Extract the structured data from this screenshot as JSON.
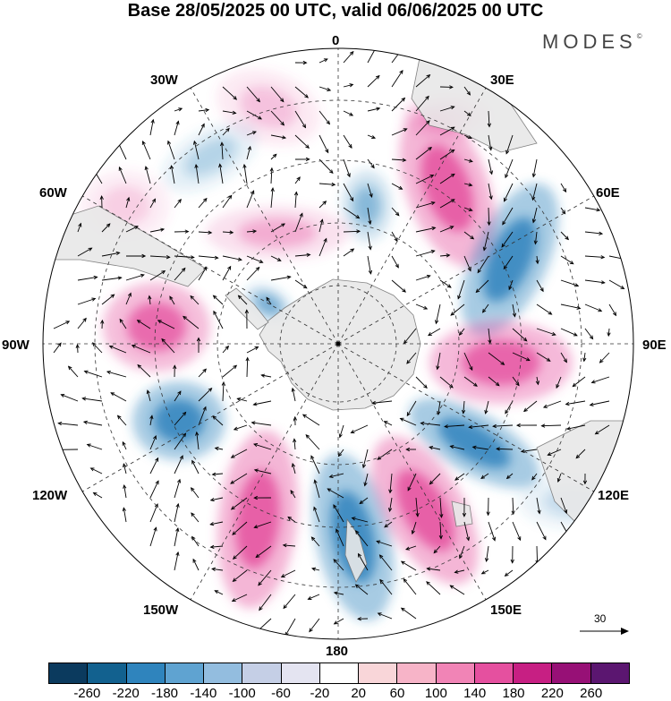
{
  "title": "Base 28/05/2025 00 UTC, valid 06/06/2025 00 UTC",
  "brand": "MODES",
  "brand_mark": "©",
  "longitude_labels": {
    "top": "0",
    "e30": "30E",
    "e60": "60E",
    "e90": "90E",
    "e120": "120E",
    "e150": "150E",
    "bottom": "180",
    "w150": "150W",
    "w120": "120W",
    "w90": "90W",
    "w60": "60W",
    "w30": "30W"
  },
  "reference_vector": {
    "label": "30"
  },
  "colorbar": {
    "colors": [
      "#0b3a5e",
      "#12618f",
      "#2f84bd",
      "#5fa3d1",
      "#93bddf",
      "#c5cfe6",
      "#e4e4f1",
      "#ffffff",
      "#f9d6d9",
      "#f7b4c8",
      "#f184b6",
      "#e5509f",
      "#c71f83",
      "#971076",
      "#5b1670"
    ],
    "tick_labels": [
      "-260",
      "-220",
      "-180",
      "-140",
      "-100",
      "-60",
      "-20",
      "20",
      "60",
      "100",
      "140",
      "180",
      "220",
      "260"
    ]
  },
  "map": {
    "projection": "south polar stereographic",
    "field": "anomaly",
    "pattern": "alternating positive/negative centers encircling Antarctica",
    "positive_color": "#e5509f",
    "negative_color": "#2f84bd",
    "land_color": "#e8e8e8"
  }
}
